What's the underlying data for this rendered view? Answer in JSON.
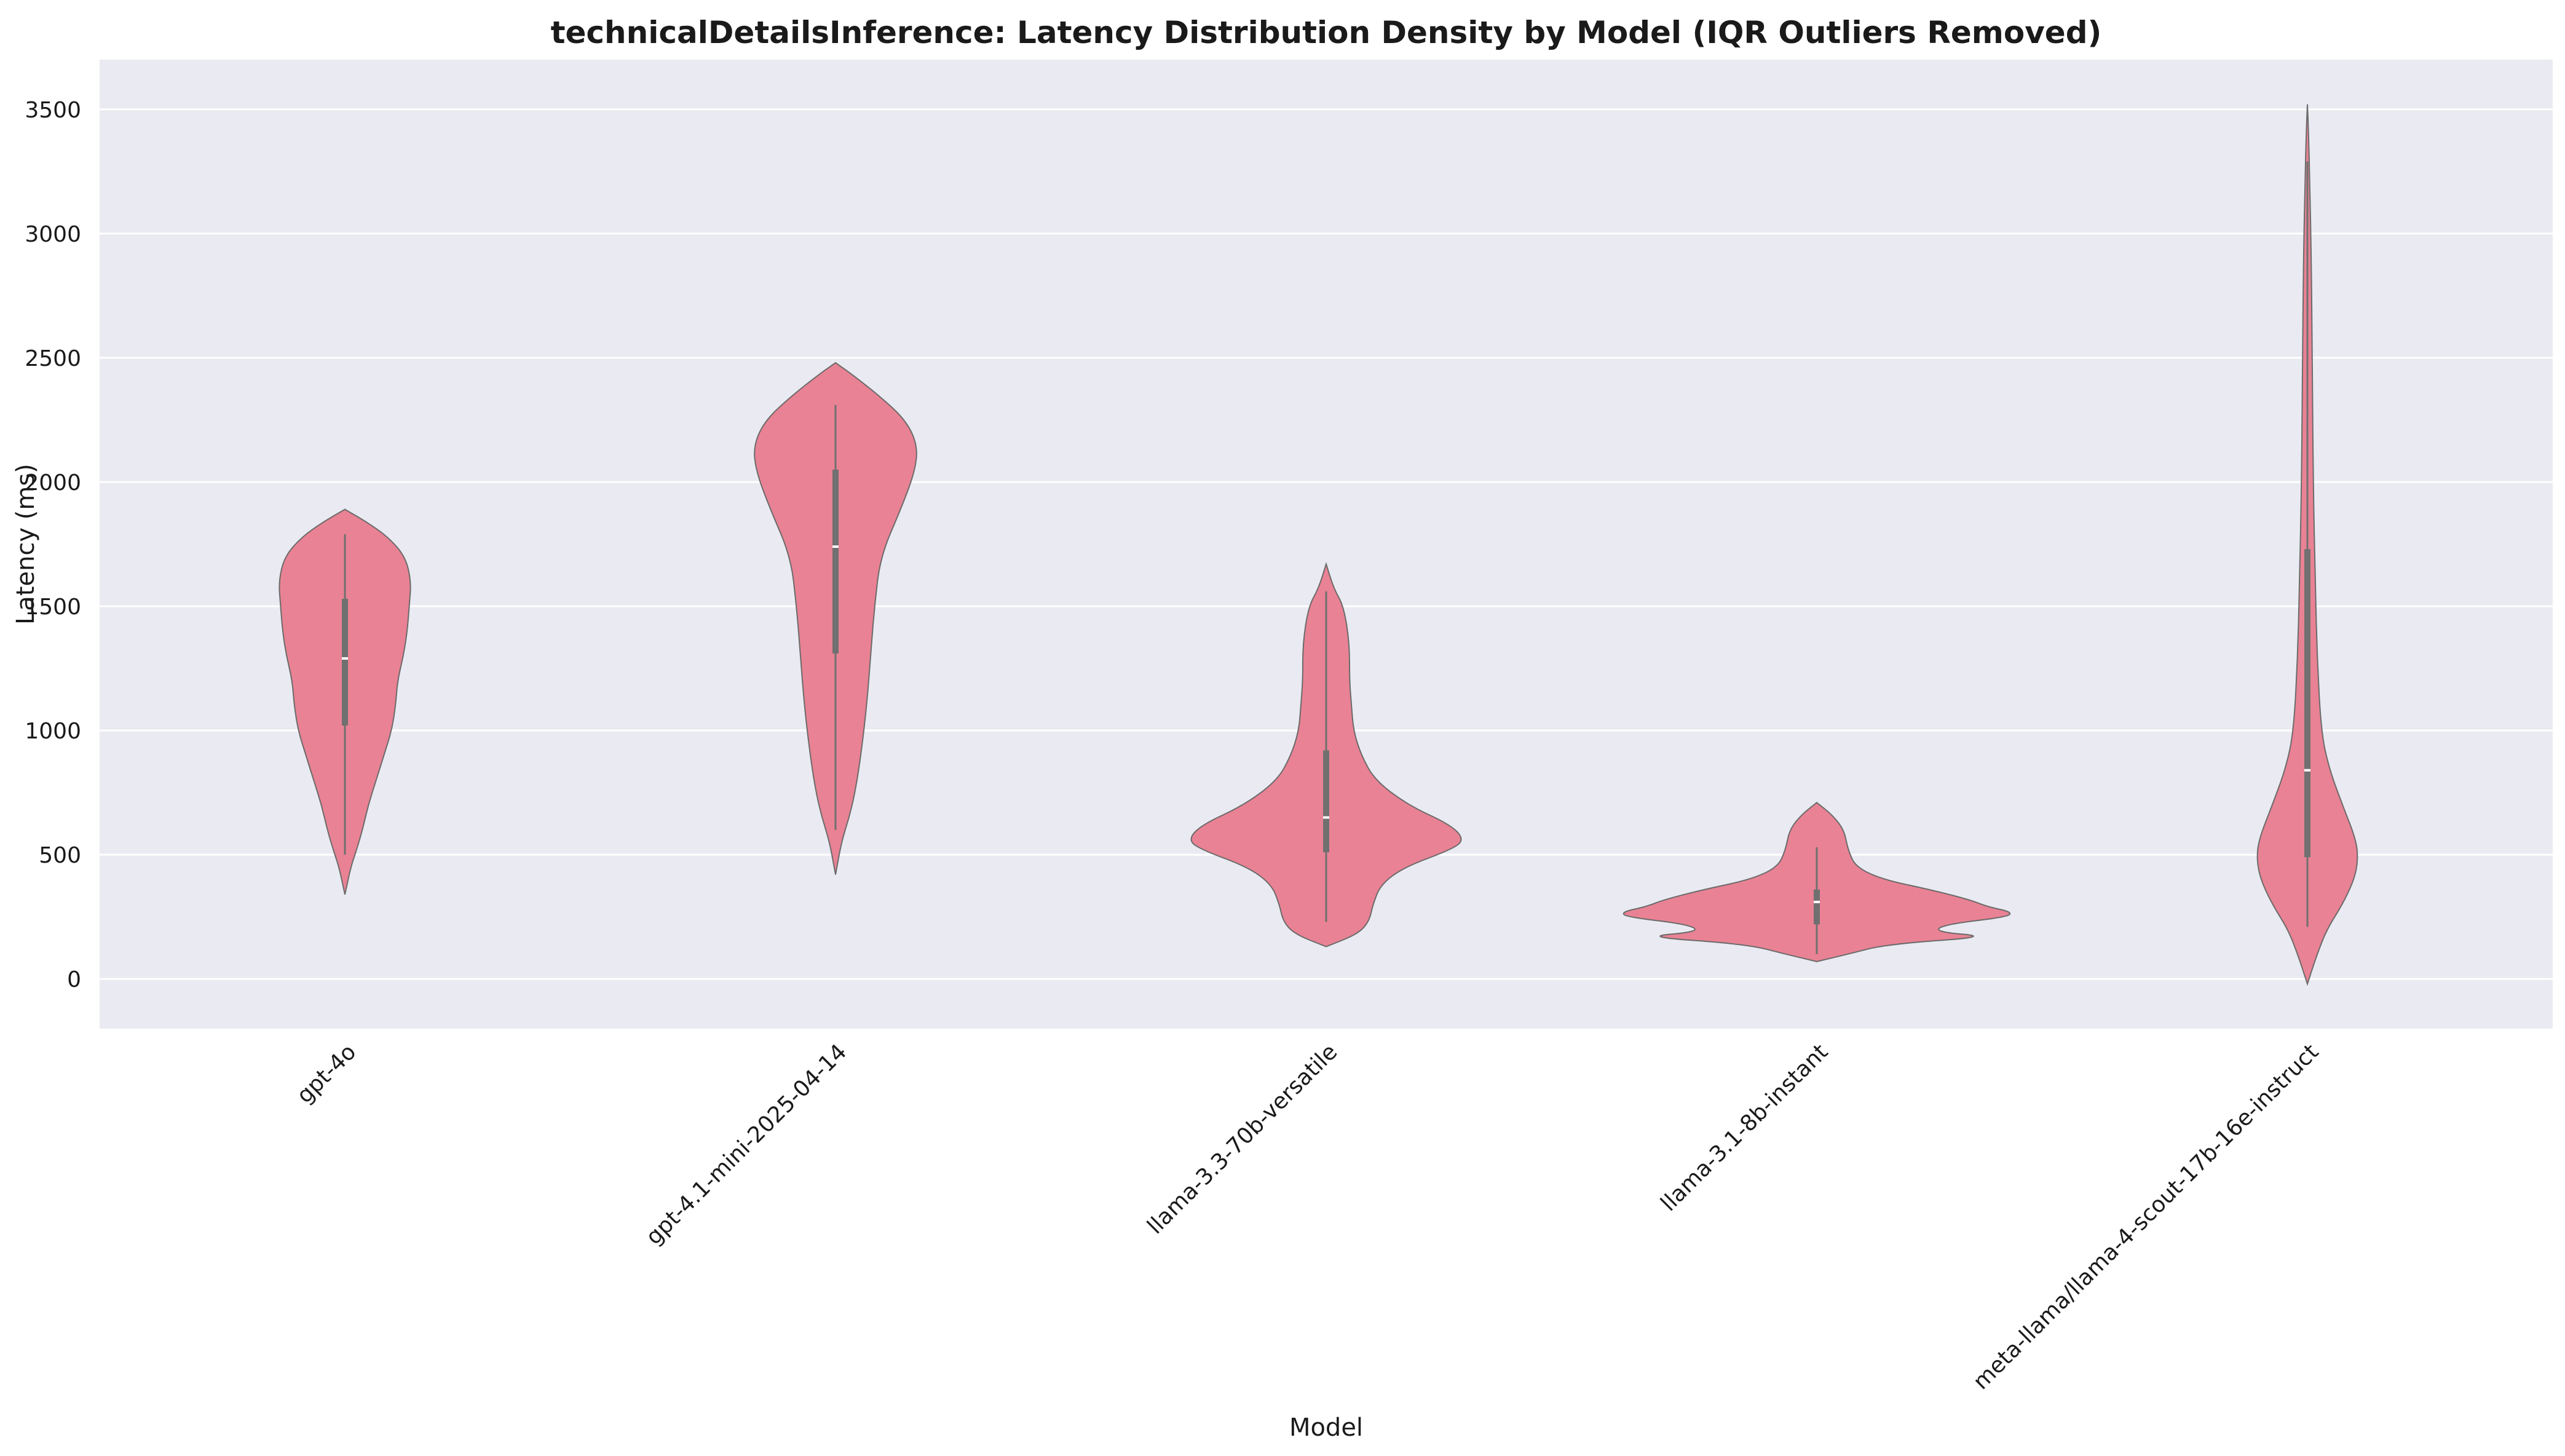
{
  "chart_data": {
    "type": "violin",
    "title": "technicalDetailsInference: Latency Distribution Density by Model (IQR Outliers Removed)",
    "xlabel": "Model",
    "ylabel": "Latency (ms)",
    "ylim": [
      -200,
      3700
    ],
    "yticks": [
      0,
      500,
      1000,
      1500,
      2000,
      2500,
      3000,
      3500
    ],
    "grid": true,
    "colors": {
      "violin_fill": "#E98294",
      "violin_edge": "#6b6b6b",
      "inner": "#707070",
      "plot_bg": "#EAEAF2",
      "grid": "#ffffff"
    },
    "categories": [
      "gpt-4o",
      "gpt-4.1-mini-2025-04-14",
      "llama-3.3-70b-versatile",
      "llama-3.1-8b-instant",
      "meta-llama/llama-4-scout-17b-16e-instruct"
    ],
    "series": [
      {
        "category": "gpt-4o",
        "whisker": [
          500,
          1790
        ],
        "q1": 1020,
        "median": 1290,
        "q3": 1530,
        "range": [
          340,
          1890
        ],
        "density": [
          [
            340,
            0
          ],
          [
            450,
            0.03
          ],
          [
            520,
            0.06
          ],
          [
            600,
            0.09
          ],
          [
            700,
            0.12
          ],
          [
            800,
            0.16
          ],
          [
            900,
            0.2
          ],
          [
            1000,
            0.24
          ],
          [
            1100,
            0.26
          ],
          [
            1200,
            0.27
          ],
          [
            1300,
            0.3
          ],
          [
            1400,
            0.32
          ],
          [
            1500,
            0.33
          ],
          [
            1600,
            0.34
          ],
          [
            1700,
            0.31
          ],
          [
            1780,
            0.22
          ],
          [
            1840,
            0.11
          ],
          [
            1890,
            0
          ]
        ]
      },
      {
        "category": "gpt-4.1-mini-2025-04-14",
        "whisker": [
          600,
          2310
        ],
        "q1": 1310,
        "median": 1740,
        "q3": 2050,
        "range": [
          420,
          2480
        ],
        "density": [
          [
            420,
            0
          ],
          [
            550,
            0.03
          ],
          [
            650,
            0.07
          ],
          [
            750,
            0.1
          ],
          [
            900,
            0.13
          ],
          [
            1100,
            0.16
          ],
          [
            1300,
            0.18
          ],
          [
            1500,
            0.2
          ],
          [
            1700,
            0.23
          ],
          [
            1900,
            0.34
          ],
          [
            2050,
            0.41
          ],
          [
            2150,
            0.42
          ],
          [
            2250,
            0.36
          ],
          [
            2350,
            0.22
          ],
          [
            2430,
            0.09
          ],
          [
            2480,
            0
          ]
        ]
      },
      {
        "category": "llama-3.3-70b-versatile",
        "whisker": [
          230,
          1560
        ],
        "q1": 510,
        "median": 650,
        "q3": 920,
        "range": [
          130,
          1670
        ],
        "density": [
          [
            130,
            0
          ],
          [
            180,
            0.16
          ],
          [
            230,
            0.22
          ],
          [
            300,
            0.24
          ],
          [
            380,
            0.28
          ],
          [
            450,
            0.4
          ],
          [
            520,
            0.64
          ],
          [
            560,
            0.71
          ],
          [
            620,
            0.64
          ],
          [
            700,
            0.42
          ],
          [
            800,
            0.25
          ],
          [
            900,
            0.18
          ],
          [
            1000,
            0.14
          ],
          [
            1100,
            0.13
          ],
          [
            1200,
            0.12
          ],
          [
            1350,
            0.12
          ],
          [
            1500,
            0.09
          ],
          [
            1570,
            0.04
          ],
          [
            1670,
            0
          ]
        ]
      },
      {
        "category": "llama-3.1-8b-instant",
        "whisker": [
          100,
          530
        ],
        "q1": 220,
        "median": 310,
        "q3": 360,
        "range": [
          70,
          710
        ],
        "density": [
          [
            70,
            0
          ],
          [
            100,
            0.16
          ],
          [
            140,
            0.36
          ],
          [
            170,
            0.9
          ],
          [
            190,
            0.6
          ],
          [
            220,
            0.66
          ],
          [
            250,
            0.98
          ],
          [
            270,
            1.0
          ],
          [
            290,
            0.88
          ],
          [
            320,
            0.78
          ],
          [
            360,
            0.58
          ],
          [
            400,
            0.34
          ],
          [
            450,
            0.2
          ],
          [
            520,
            0.16
          ],
          [
            600,
            0.14
          ],
          [
            660,
            0.08
          ],
          [
            710,
            0
          ]
        ]
      },
      {
        "category": "meta-llama/llama-4-scout-17b-16e-instruct",
        "whisker": [
          210,
          3290
        ],
        "q1": 490,
        "median": 840,
        "q3": 1730,
        "range": [
          -20,
          3520
        ],
        "density": [
          [
            -20,
            0
          ],
          [
            100,
            0.05
          ],
          [
            200,
            0.1
          ],
          [
            300,
            0.18
          ],
          [
            400,
            0.24
          ],
          [
            480,
            0.26
          ],
          [
            560,
            0.25
          ],
          [
            700,
            0.18
          ],
          [
            850,
            0.11
          ],
          [
            1000,
            0.07
          ],
          [
            1300,
            0.05
          ],
          [
            1600,
            0.04
          ],
          [
            2000,
            0.03
          ],
          [
            2500,
            0.025
          ],
          [
            2900,
            0.02
          ],
          [
            3200,
            0.012
          ],
          [
            3400,
            0.006
          ],
          [
            3520,
            0
          ]
        ]
      }
    ]
  }
}
